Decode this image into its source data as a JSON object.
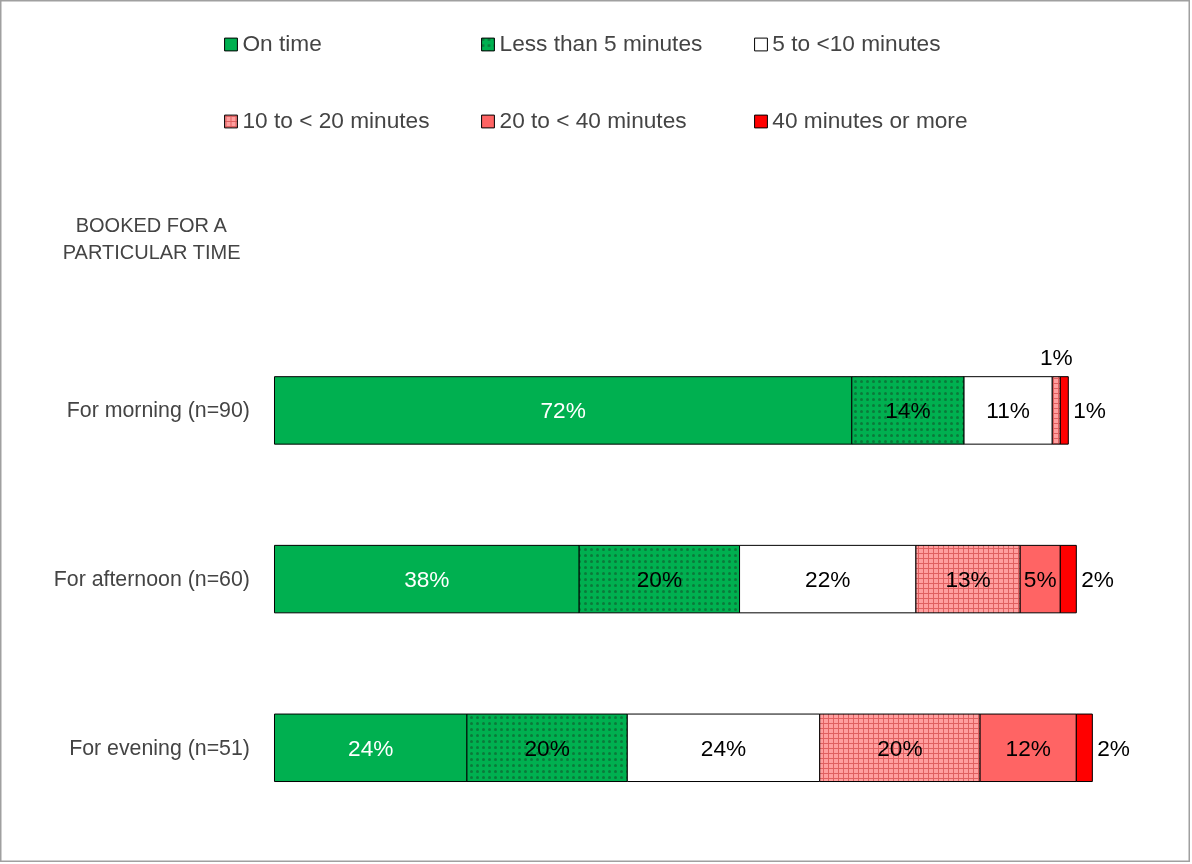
{
  "chart_data": {
    "type": "bar",
    "orientation": "horizontal",
    "stacked": true,
    "legend": "top",
    "tick_labels": "y",
    "grid": false,
    "annotations": [
      "BOOKED FOR A\nPARTICULAR TIME"
    ],
    "categories": [
      "For morning (n=90)",
      "For afternoon (n=60)",
      "For evening (n=51)"
    ],
    "series": [
      {
        "name": "On time",
        "color": "#00b050",
        "values": [
          72,
          38,
          24
        ],
        "value_labels": [
          "72%",
          "38%",
          "24%"
        ]
      },
      {
        "name": "Less than 5 minutes",
        "color": "#00b050",
        "values": [
          14,
          20,
          20
        ],
        "value_labels": [
          "14%",
          "20%",
          "20%"
        ]
      },
      {
        "name": "5 to <10 minutes",
        "color": "#ffffff",
        "values": [
          11,
          22,
          24
        ],
        "value_labels": [
          "11%",
          "22%",
          "24%"
        ]
      },
      {
        "name": "10 to < 20 minutes",
        "color": "#ff9f9f",
        "values": [
          1,
          13,
          20
        ],
        "value_labels": [
          "1%",
          "13%",
          "20%"
        ]
      },
      {
        "name": "20 to < 40 minutes",
        "color": "#ff6464",
        "values": [
          null,
          5,
          12
        ],
        "value_labels": [
          null,
          "5%",
          "12%"
        ]
      },
      {
        "name": "40 minutes or more",
        "color": "#ff0000",
        "values": [
          1,
          2,
          2
        ],
        "value_labels": [
          "1%",
          "2%",
          "2%"
        ]
      }
    ]
  }
}
